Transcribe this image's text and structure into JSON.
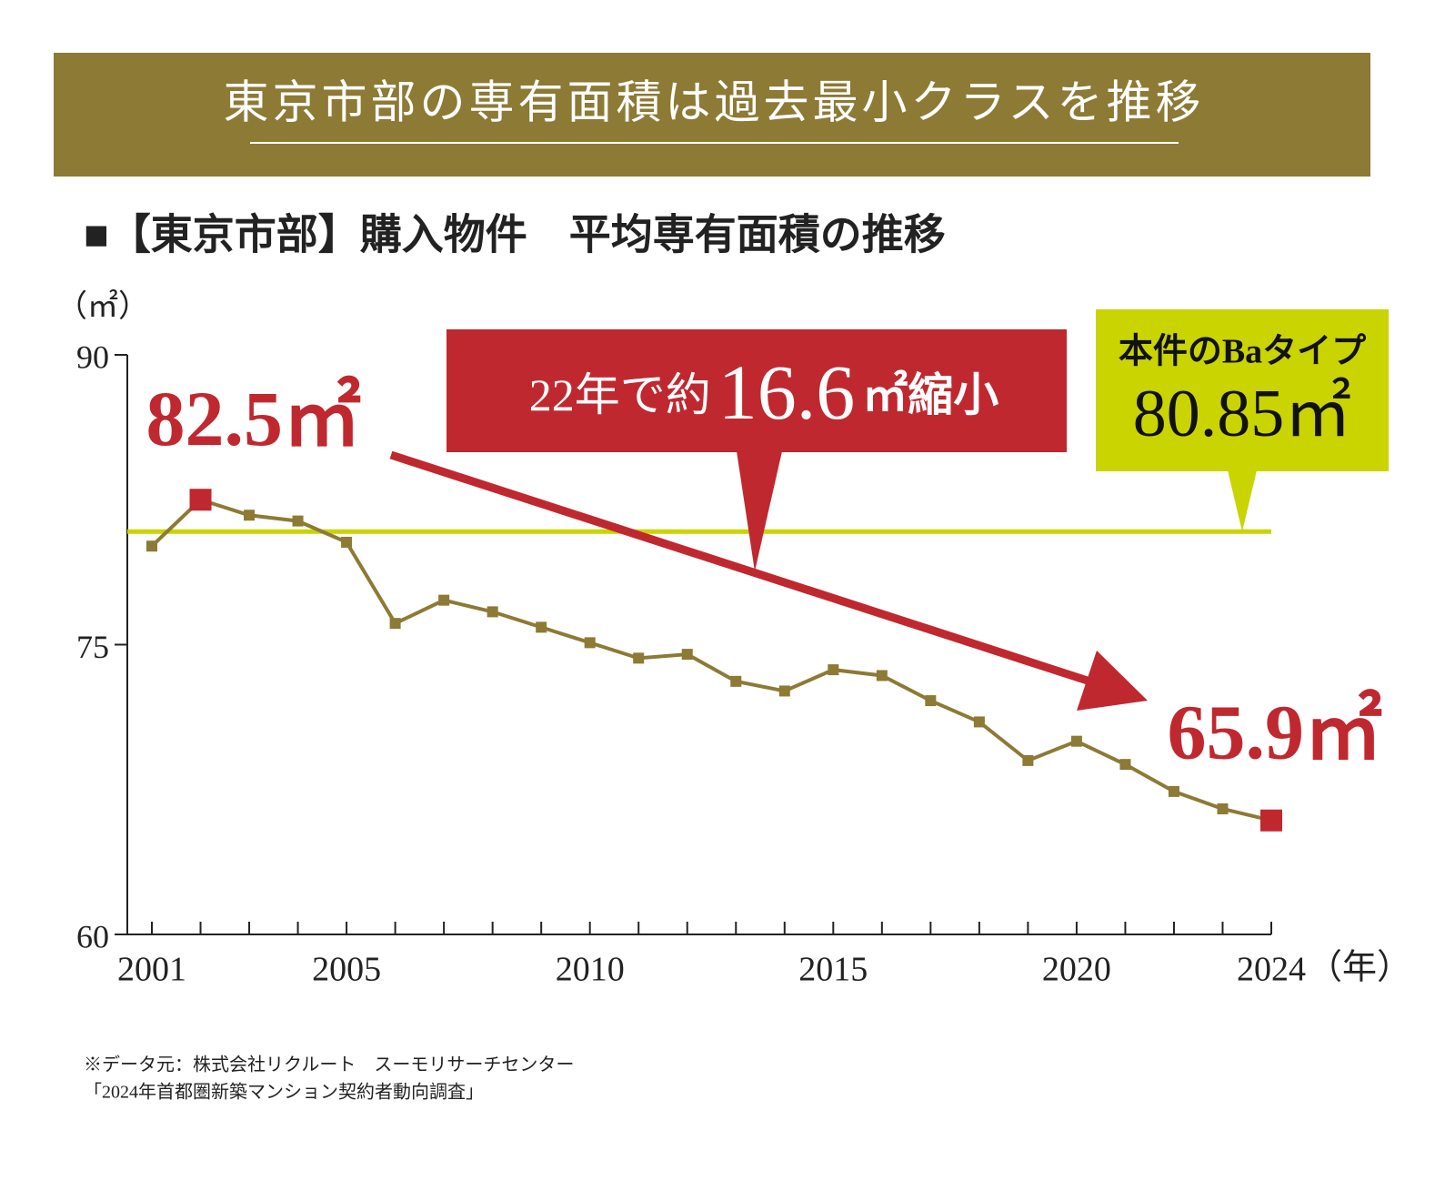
{
  "header": {
    "title": "東京市部の専有面積は過去最小クラスを推移"
  },
  "chart_data": {
    "type": "line",
    "title": "■【東京市部】購入物件　平均専有面積の推移",
    "y_unit": "（㎡）",
    "x_unit": "（年）",
    "categories": [
      "2001",
      null,
      null,
      null,
      "2005",
      null,
      null,
      null,
      null,
      "2010",
      null,
      null,
      null,
      null,
      "2015",
      null,
      null,
      null,
      null,
      "2020",
      null,
      null,
      null,
      "2024"
    ],
    "series": [
      {
        "name": "平均専有面積",
        "color": "#8c7a35",
        "highlight_color": "#c0282f",
        "values": [
          80.1,
          82.5,
          81.7,
          81.4,
          80.3,
          76.1,
          77.3,
          76.7,
          75.9,
          75.1,
          74.3,
          74.5,
          73.1,
          72.6,
          73.7,
          73.4,
          72.1,
          71.0,
          69.0,
          70.0,
          68.8,
          67.4,
          66.5,
          65.9
        ],
        "value_labels": [
          null,
          "82.5㎡",
          null,
          null,
          null,
          null,
          null,
          null,
          null,
          null,
          null,
          null,
          null,
          null,
          null,
          null,
          null,
          null,
          null,
          null,
          null,
          null,
          null,
          "65.9㎡"
        ]
      }
    ],
    "ylim": [
      60,
      90
    ],
    "yticks": [
      60,
      75,
      90
    ],
    "reference_line": {
      "value": 80.85,
      "color": "#c9d400",
      "label": "本件のBaタイプ",
      "value_label": "80.85㎡"
    },
    "annotation": {
      "prefix": "22年で約",
      "number": "16.6",
      "suffix": "㎡縮小",
      "color": "#c0282f"
    },
    "source": [
      "※データ元：株式会社リクルート　スーモリサーチセンター",
      "「2024年首都圏新築マンション契約者動向調査」"
    ]
  }
}
